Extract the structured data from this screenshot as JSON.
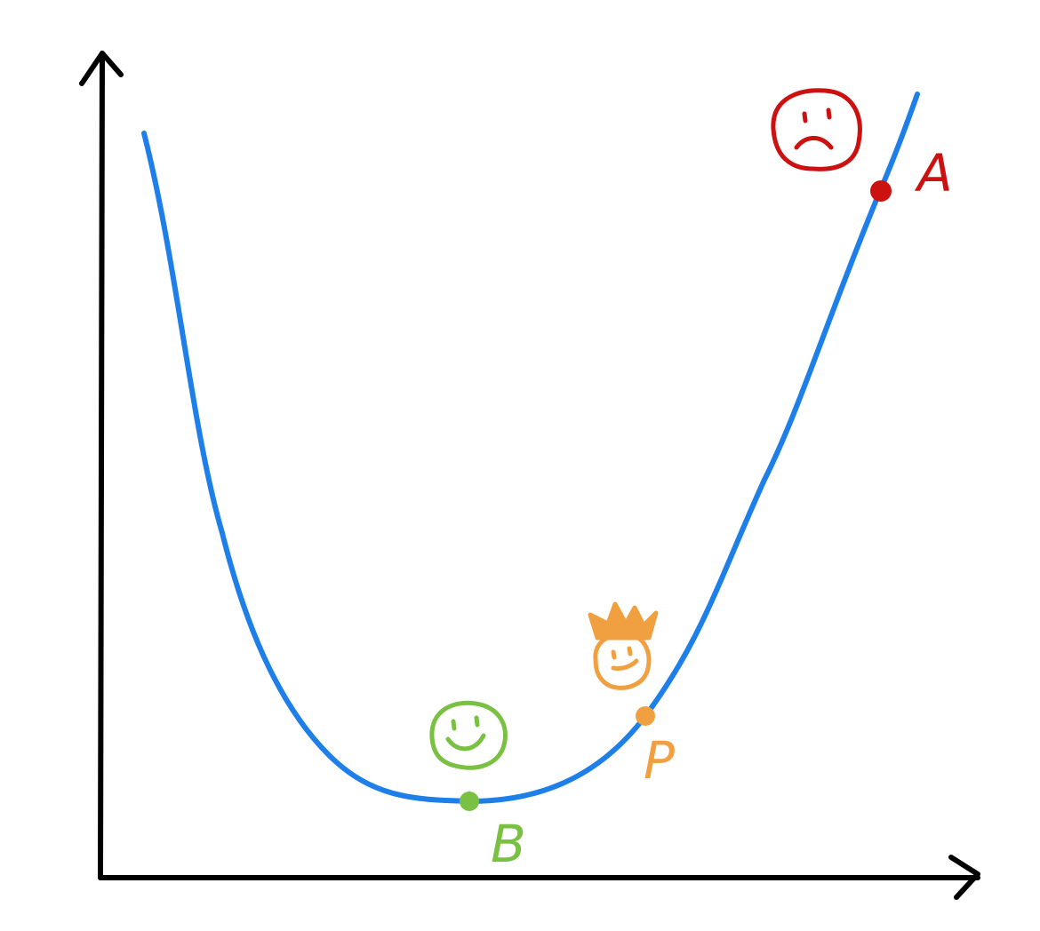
{
  "diagram": {
    "curve_color": "#1f7fe8",
    "axis_color": "#000000",
    "points": [
      {
        "id": "A",
        "label": "A",
        "color": "#cc1111",
        "face": "sad-face-icon"
      },
      {
        "id": "B",
        "label": "B",
        "color": "#7ac043",
        "face": "happy-face-icon"
      },
      {
        "id": "P",
        "label": "P",
        "color": "#f0a040",
        "face": "crowned-smirk-face-icon"
      }
    ]
  }
}
